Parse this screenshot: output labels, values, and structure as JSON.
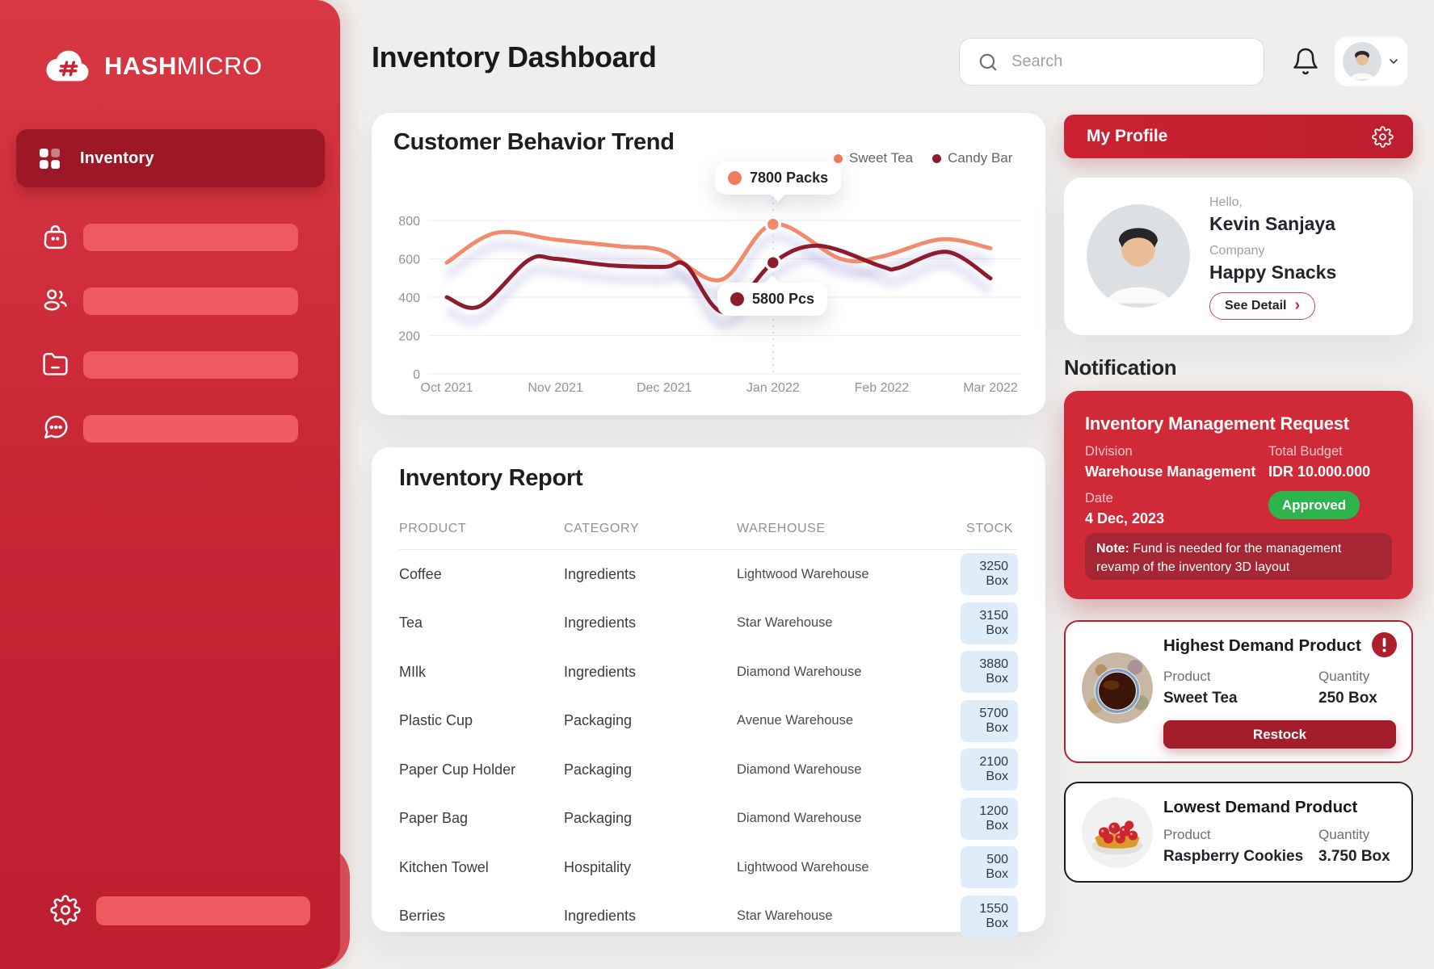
{
  "brand": {
    "name_bold": "HASH",
    "name_light": "MICRO",
    "logo_icon": "cloud-hash-icon"
  },
  "page": {
    "title": "Inventory Dashboard",
    "background": "#F0EEEC",
    "accent_red": "#C72434"
  },
  "sidebar": {
    "active_item": {
      "label": "Inventory",
      "icon": "grid-icon"
    },
    "skeleton_items": [
      {
        "icon": "shopping-bag-icon"
      },
      {
        "icon": "users-icon"
      },
      {
        "icon": "folder-icon"
      },
      {
        "icon": "chat-icon"
      }
    ],
    "footer": {
      "icon": "gear-icon"
    }
  },
  "header": {
    "search": {
      "placeholder": "Search",
      "icon": "search-icon"
    },
    "bell_icon": "bell-icon",
    "avatar_chevron": "chevron-down-icon"
  },
  "chart_card": {
    "title": "Customer Behavior Trend"
  },
  "chart_data": {
    "type": "line",
    "title": "Customer Behavior Trend",
    "x_labels": [
      "Oct 2021",
      "Nov 2021",
      "Dec 2021",
      "Jan 2022",
      "Feb 2022",
      "Mar 2022"
    ],
    "y_ticks": [
      0,
      200,
      400,
      600,
      800
    ],
    "ylim": [
      0,
      800
    ],
    "grid": "horizontal",
    "legend_position": "top-right",
    "series": [
      {
        "name": "Sweet Tea",
        "color": "#F28A6D",
        "values_at_months": [
          580,
          700,
          640,
          780,
          610,
          655
        ],
        "curve": [
          [
            0,
            580
          ],
          [
            0.45,
            735
          ],
          [
            1,
            700
          ],
          [
            1.6,
            665
          ],
          [
            2,
            640
          ],
          [
            2.52,
            490
          ],
          [
            3,
            780
          ],
          [
            3.62,
            600
          ],
          [
            4,
            612
          ],
          [
            4.55,
            702
          ],
          [
            5,
            655
          ]
        ]
      },
      {
        "name": "Candy Bar",
        "color": "#8E1C2D",
        "values_at_months": [
          400,
          600,
          560,
          580,
          585,
          500
        ],
        "curve": [
          [
            0,
            400
          ],
          [
            0.3,
            352
          ],
          [
            0.75,
            592
          ],
          [
            1,
            600
          ],
          [
            1.5,
            566
          ],
          [
            2,
            558
          ],
          [
            2.2,
            566
          ],
          [
            2.55,
            322
          ],
          [
            3,
            580
          ],
          [
            3.42,
            668
          ],
          [
            4,
            560
          ],
          [
            4.15,
            552
          ],
          [
            4.6,
            636
          ],
          [
            5,
            498
          ]
        ]
      }
    ],
    "annotations": [
      {
        "series": "Sweet Tea",
        "month_index": 3,
        "value": 780,
        "label": "7800 Packs"
      },
      {
        "series": "Candy Bar",
        "month_index": 3,
        "value": 580,
        "label": "5800 Pcs"
      }
    ]
  },
  "inventory_report": {
    "title": "Inventory Report",
    "columns": [
      "PRODUCT",
      "CATEGORY",
      "WAREHOUSE",
      "STOCK"
    ],
    "rows": [
      {
        "product": "Coffee",
        "category": "Ingredients",
        "warehouse": "Lightwood Warehouse",
        "stock": "3250 Box"
      },
      {
        "product": "Tea",
        "category": "Ingredients",
        "warehouse": "Star Warehouse",
        "stock": "3150 Box"
      },
      {
        "product": "MIlk",
        "category": "Ingredients",
        "warehouse": "Diamond Warehouse",
        "stock": "3880 Box"
      },
      {
        "product": "Plastic Cup",
        "category": "Packaging",
        "warehouse": "Avenue Warehouse",
        "stock": "5700 Box"
      },
      {
        "product": "Paper Cup Holder",
        "category": "Packaging",
        "warehouse": "Diamond Warehouse",
        "stock": "2100 Box"
      },
      {
        "product": "Paper Bag",
        "category": "Packaging",
        "warehouse": "Diamond Warehouse",
        "stock": "1200 Box"
      },
      {
        "product": "Kitchen Towel",
        "category": "Hospitality",
        "warehouse": "Lightwood Warehouse",
        "stock": "500 Box"
      },
      {
        "product": "Berries",
        "category": "Ingredients",
        "warehouse": "Star Warehouse",
        "stock": "1550 Box"
      }
    ],
    "stock_badge_bg": "#DFEDFB"
  },
  "profile": {
    "panel_title": "My Profile",
    "panel_icon": "gear-icon",
    "greeting": "Hello,",
    "name": "Kevin Sanjaya",
    "company_label": "Company",
    "company_name": "Happy Snacks",
    "detail_button": "See Detail"
  },
  "notifications": {
    "section_title": "Notification",
    "request": {
      "title": "Inventory Management Request",
      "division_label": "DIvision",
      "division": "Warehouse Management",
      "budget_label": "Total Budget",
      "budget": "IDR 10.000.000",
      "date_label": "Date",
      "date": "4 Dec, 2023",
      "status": "Approved",
      "status_color": "#2DB44A",
      "card_color": "#D02A38",
      "note_label": "Note:",
      "note": "Fund is needed for the management revamp of the inventory 3D layout"
    },
    "highest": {
      "title": "Highest Demand Product",
      "alert_icon": "exclamation-icon",
      "image": "sweet-tea-photo",
      "product_label": "Product",
      "product": "Sweet Tea",
      "quantity_label": "Quantity",
      "quantity": "250 Box",
      "action": "Restock"
    },
    "lowest": {
      "title": "Lowest Demand Product",
      "image": "raspberry-cookies-photo",
      "product_label": "Product",
      "product": "Raspberry Cookies",
      "quantity_label": "Quantity",
      "quantity": "3.750 Box"
    }
  }
}
